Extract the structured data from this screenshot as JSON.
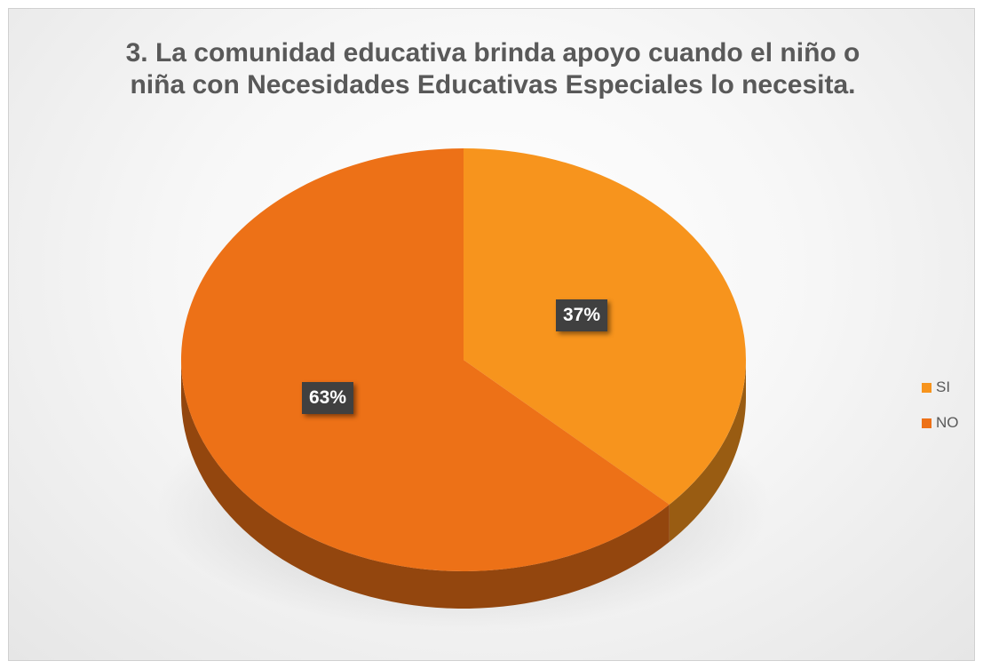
{
  "chart_data": {
    "type": "pie",
    "title": "3. La comunidad educativa brinda apoyo cuando el niño o niña con Necesidades Educativas Especiales lo necesita.",
    "categories": [
      "SI",
      "NO"
    ],
    "values": [
      37,
      63
    ],
    "data_labels": [
      "37%",
      "63%"
    ],
    "colors": [
      "#F7941D",
      "#ED7117"
    ],
    "legend_position": "right",
    "style": "3d-tilted"
  }
}
